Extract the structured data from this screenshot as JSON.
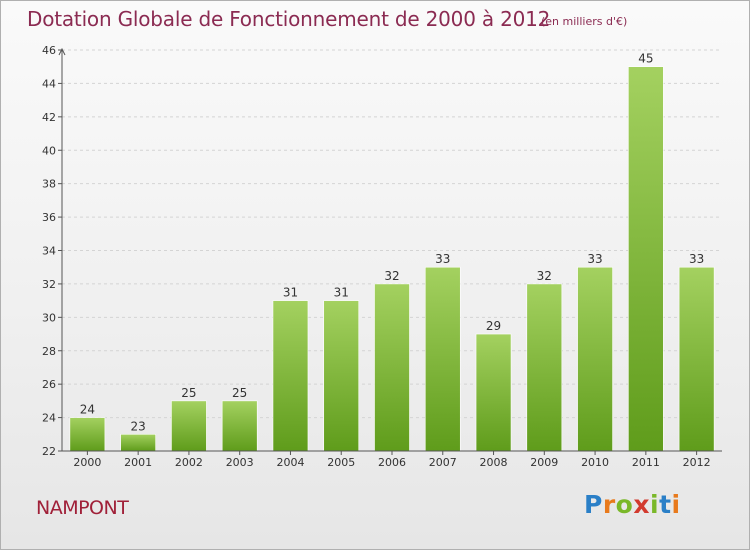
{
  "title": "Dotation Globale de Fonctionnement de 2000 à 2012",
  "subtitle": "(en milliers d'€)",
  "commune": "NAMPONT",
  "logo": {
    "text": "Proxiti",
    "letters": [
      {
        "ch": "P",
        "color": "#2a7fc7"
      },
      {
        "ch": "r",
        "color": "#e87a1c"
      },
      {
        "ch": "o",
        "color": "#7ab829"
      },
      {
        "ch": "x",
        "color": "#d23a2e"
      },
      {
        "ch": "i",
        "color": "#7ab829"
      },
      {
        "ch": "t",
        "color": "#2a7fc7"
      },
      {
        "ch": "i",
        "color": "#e87a1c"
      }
    ]
  },
  "colors": {
    "bar_top": "#a4d160",
    "bar_bottom": "#5f9c1b",
    "title": "#8b2b52",
    "grid": "#d4d4d4",
    "axis": "#555555"
  },
  "chart_data": {
    "type": "bar",
    "categories": [
      "2000",
      "2001",
      "2002",
      "2003",
      "2004",
      "2005",
      "2006",
      "2007",
      "2008",
      "2009",
      "2010",
      "2011",
      "2012"
    ],
    "values": [
      24,
      23,
      25,
      25,
      31,
      31,
      32,
      33,
      29,
      32,
      33,
      45,
      33
    ],
    "ylim": [
      22,
      46
    ],
    "yticks": [
      22,
      24,
      26,
      28,
      30,
      32,
      34,
      36,
      38,
      40,
      42,
      44,
      46
    ],
    "grid": true,
    "data_labels": true
  }
}
